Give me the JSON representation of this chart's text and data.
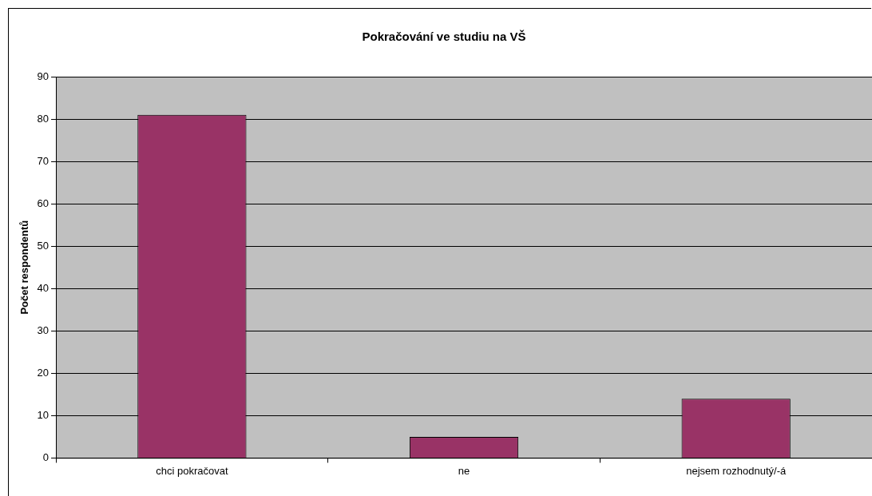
{
  "chart_data": {
    "type": "bar",
    "title": "Pokračování ve studiu na VŠ",
    "ylabel": "Počet respondentů",
    "categories": [
      "chci pokračovat",
      "ne",
      "nejsem rozhodnutý/-á"
    ],
    "values": [
      81,
      5,
      14
    ],
    "color": "#993366",
    "ylim": [
      0,
      90
    ],
    "yticks": [
      0,
      10,
      20,
      30,
      40,
      50,
      60,
      70,
      80,
      90
    ],
    "grid": "y",
    "legend": false
  }
}
